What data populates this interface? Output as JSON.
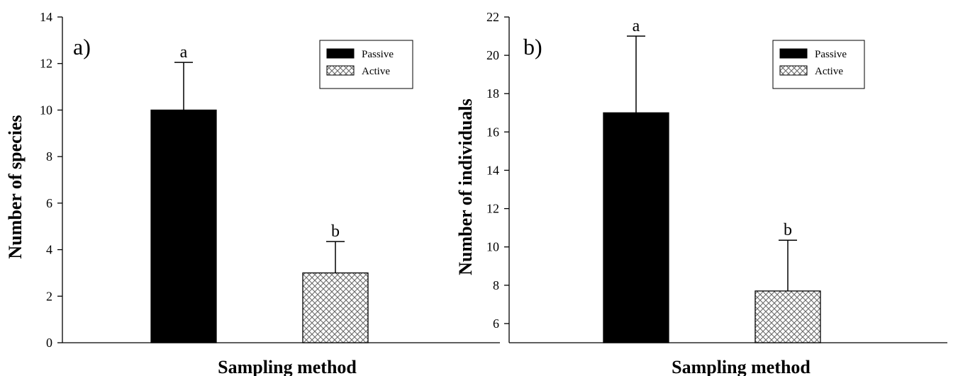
{
  "chart_data": [
    {
      "type": "bar",
      "panel_label": "a)",
      "categories": [
        "Passive",
        "Active"
      ],
      "values": [
        10,
        3
      ],
      "error_upper": [
        12.05,
        4.35
      ],
      "significance_letters": [
        "a",
        "b"
      ],
      "xlabel": "Sampling method",
      "ylabel": "Number of species",
      "ylim": [
        0,
        14
      ],
      "yticks": [
        0,
        2,
        4,
        6,
        8,
        10,
        12,
        14
      ],
      "legend": {
        "placement": "top-right",
        "entries": [
          {
            "label": "Passive",
            "fill": "solid",
            "color": "#000000"
          },
          {
            "label": "Active",
            "fill": "crosshatch",
            "color": "#b0b0b0"
          }
        ]
      },
      "grid": false
    },
    {
      "type": "bar",
      "panel_label": "b)",
      "categories": [
        "Passive",
        "Active"
      ],
      "values": [
        17,
        7.7
      ],
      "error_upper": [
        21,
        10.35
      ],
      "significance_letters": [
        "a",
        "b"
      ],
      "xlabel": "Sampling method",
      "ylabel": "Number of individuals",
      "ylim": [
        5,
        22
      ],
      "yticks": [
        6,
        8,
        10,
        12,
        14,
        16,
        18,
        20,
        22
      ],
      "legend": {
        "placement": "top-right",
        "entries": [
          {
            "label": "Passive",
            "fill": "solid",
            "color": "#000000"
          },
          {
            "label": "Active",
            "fill": "crosshatch",
            "color": "#b0b0b0"
          }
        ]
      },
      "grid": false
    }
  ]
}
